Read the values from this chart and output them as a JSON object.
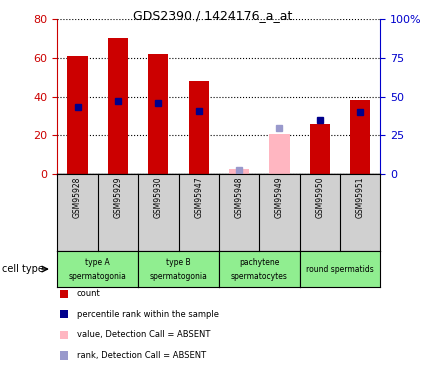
{
  "title": "GDS2390 / 1424176_a_at",
  "samples": [
    "GSM95928",
    "GSM95929",
    "GSM95930",
    "GSM95947",
    "GSM95948",
    "GSM95949",
    "GSM95950",
    "GSM95951"
  ],
  "counts": [
    61,
    70,
    62,
    48,
    null,
    21,
    26,
    38
  ],
  "ranks": [
    43,
    47,
    46,
    41,
    null,
    null,
    35,
    40
  ],
  "absent_count": [
    null,
    null,
    null,
    null,
    3,
    null,
    null,
    null
  ],
  "absent_rank": [
    null,
    null,
    null,
    null,
    3,
    30,
    null,
    null
  ],
  "is_absent": [
    false,
    false,
    false,
    false,
    true,
    true,
    false,
    false
  ],
  "cell_groups": [
    {
      "label": "type A",
      "sublabel": "spermatogonia",
      "count": 2
    },
    {
      "label": "type B",
      "sublabel": "spermatogonia",
      "count": 2
    },
    {
      "label": "pachytene",
      "sublabel": "spermatocytes",
      "count": 2
    },
    {
      "label": "round spermatids",
      "sublabel": "",
      "count": 2
    }
  ],
  "ylim_left": [
    0,
    80
  ],
  "ylim_right": [
    0,
    100
  ],
  "yticks_left": [
    0,
    20,
    40,
    60,
    80
  ],
  "yticks_right": [
    0,
    25,
    50,
    75,
    100
  ],
  "yticklabels_right": [
    "0",
    "25",
    "50",
    "75",
    "100%"
  ],
  "bar_color_present": "#cc0000",
  "bar_color_absent": "#ffb6c1",
  "dot_color_present": "#00008B",
  "dot_color_absent": "#9999cc",
  "bar_width": 0.5,
  "legend_items": [
    {
      "label": "count",
      "color": "#cc0000"
    },
    {
      "label": "percentile rank within the sample",
      "color": "#00008B"
    },
    {
      "label": "value, Detection Call = ABSENT",
      "color": "#ffb6c1"
    },
    {
      "label": "rank, Detection Call = ABSENT",
      "color": "#9999cc"
    }
  ],
  "cell_type_label": "cell type",
  "tick_label_color_left": "#cc0000",
  "tick_label_color_right": "#0000cc",
  "sample_box_color": "#d0d0d0",
  "group_box_color": "#90EE90"
}
